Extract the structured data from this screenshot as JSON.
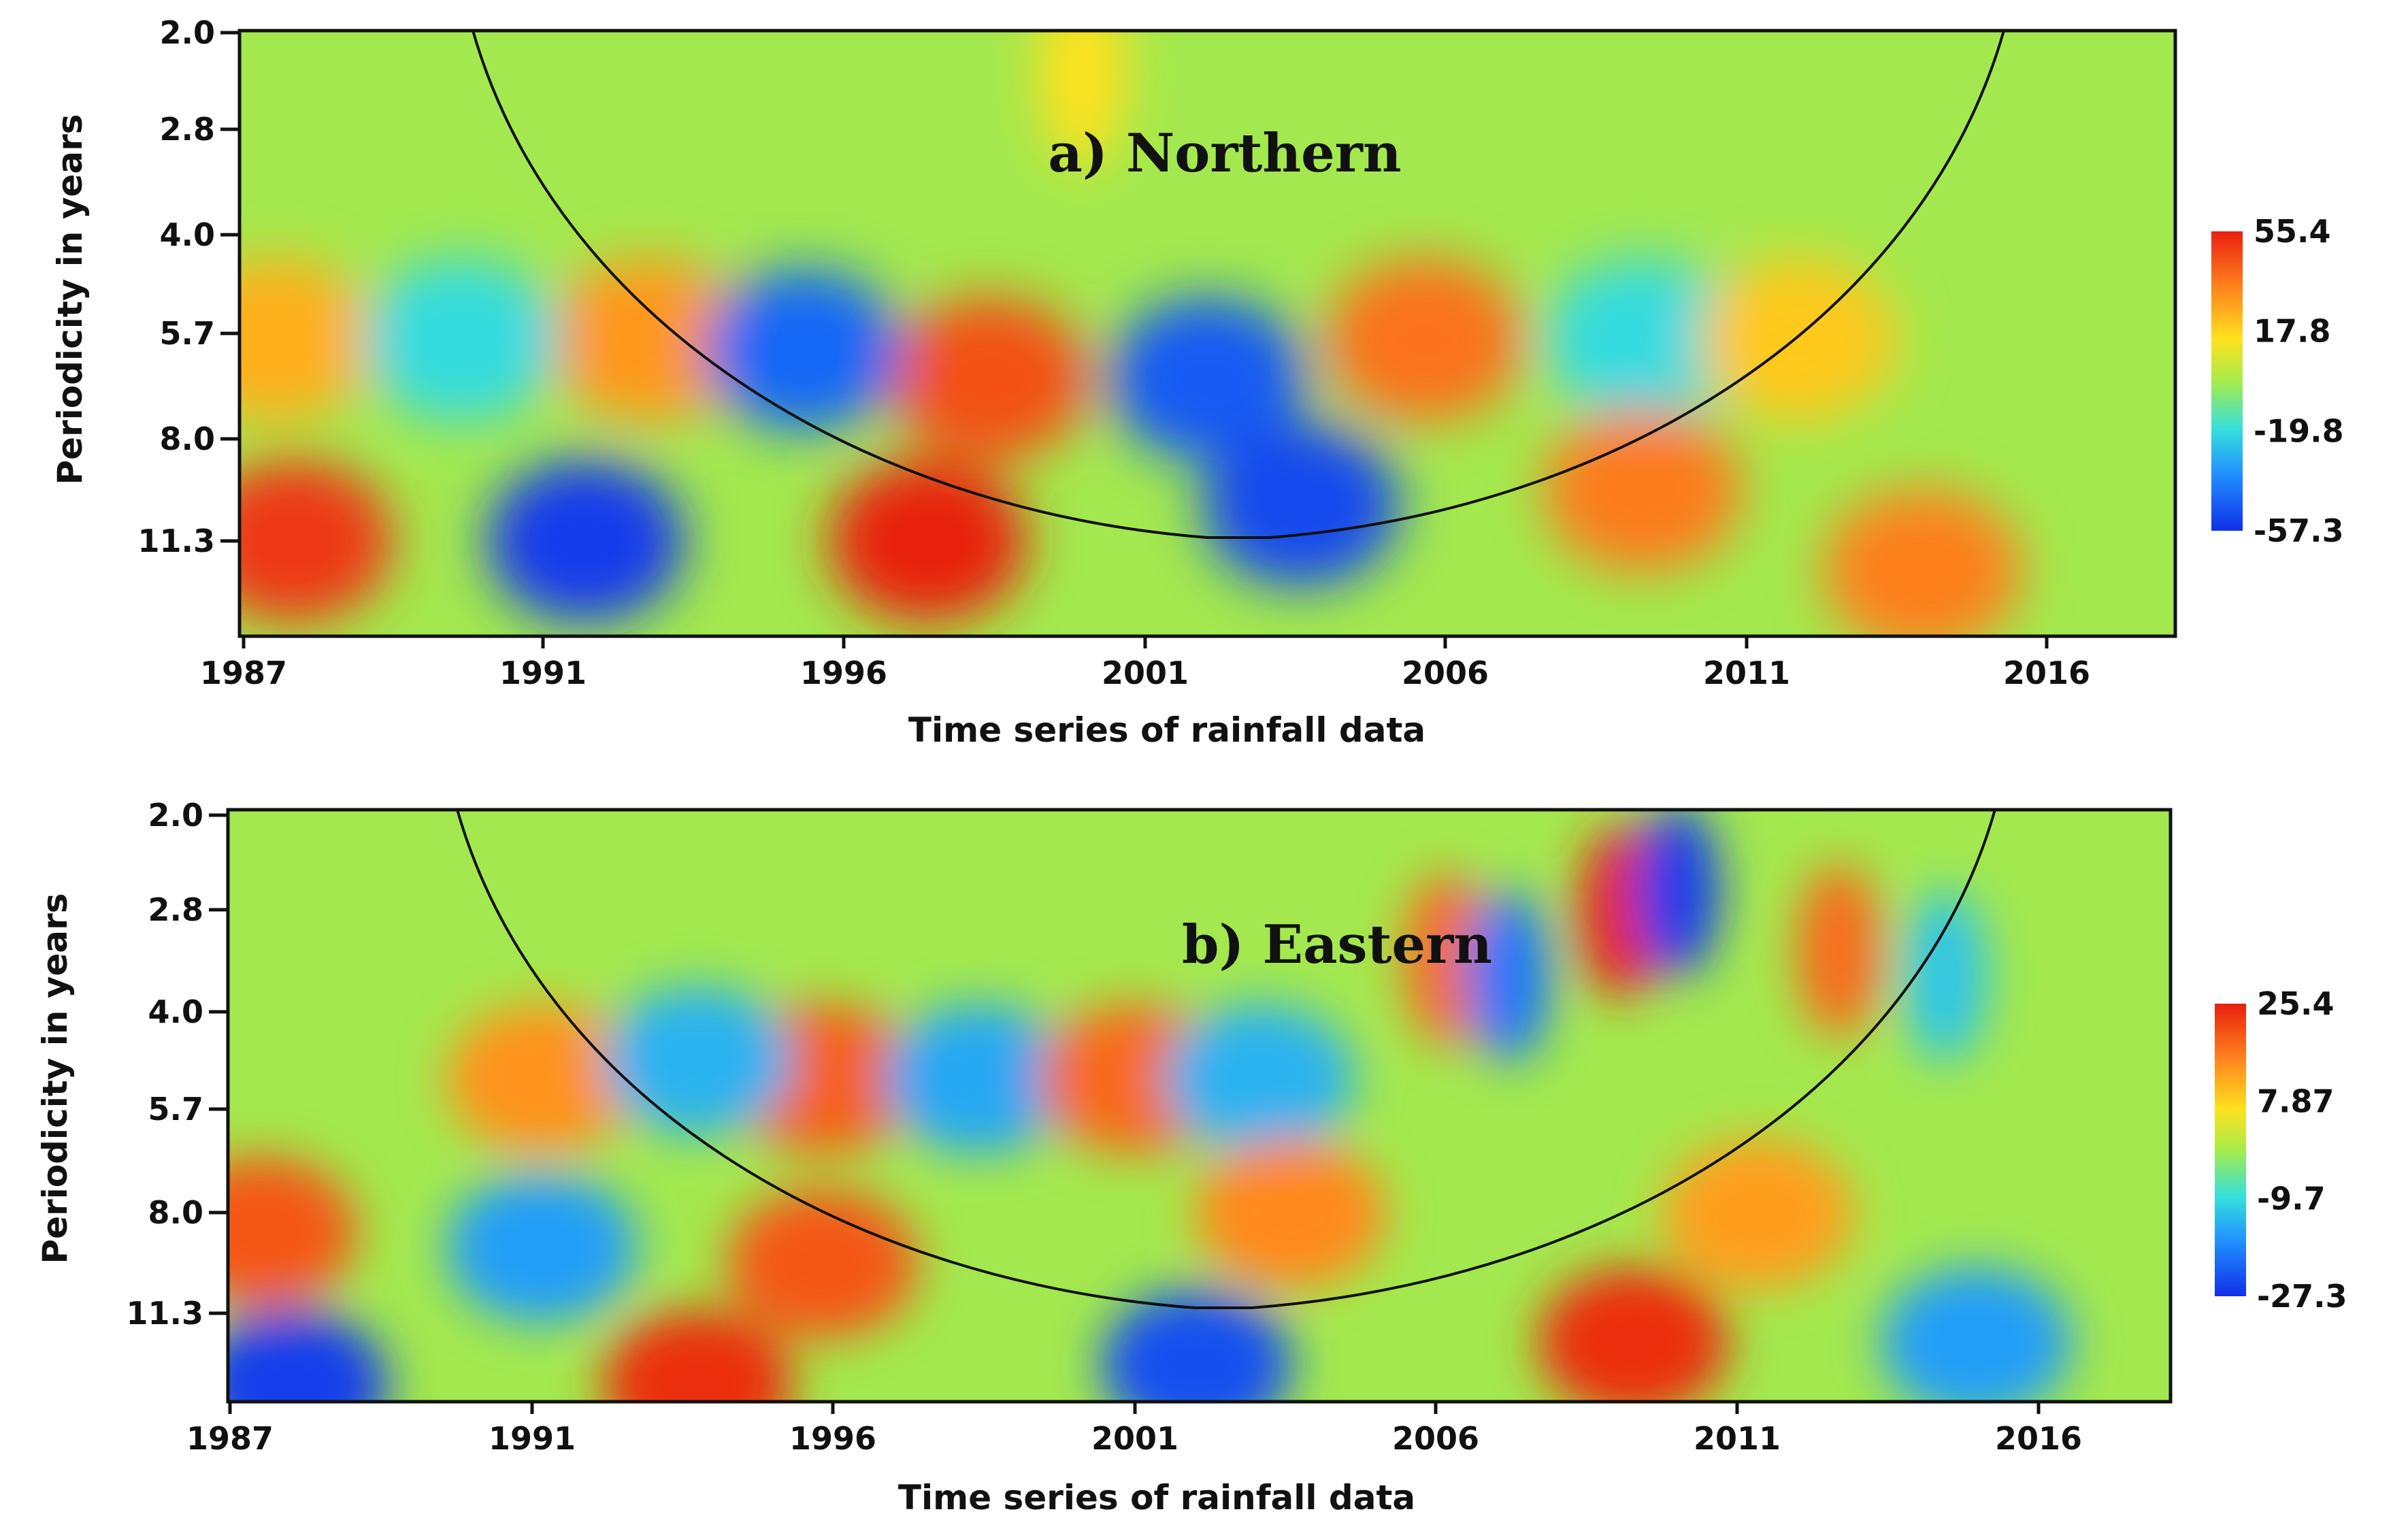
{
  "chart_data": [
    {
      "type": "heatmap",
      "title": "a) Northern",
      "xlabel": "Time series of rainfall data",
      "ylabel": "Periodicity in years",
      "x_ticks": [
        "1987",
        "1991",
        "1996",
        "2001",
        "2006",
        "2011",
        "2016"
      ],
      "y_ticks": [
        "2.0",
        "2.8",
        "4.0",
        "5.7",
        "8.0",
        "11.3"
      ],
      "xlim": [
        1987,
        2018.5
      ],
      "colorbar": {
        "ticks": [
          "55.4",
          "17.8",
          "-19.8",
          "-57.3"
        ],
        "min": -57.3,
        "max": 55.4
      },
      "cone_of_influence": true,
      "features": [
        {
          "year": 1987.8,
          "period": 11.3,
          "value": 50
        },
        {
          "year": 1992.5,
          "period": 11.3,
          "value": -55
        },
        {
          "year": 1998.0,
          "period": 11.3,
          "value": 55
        },
        {
          "year": 1999.0,
          "period": 6.5,
          "value": 45
        },
        {
          "year": 1987.5,
          "period": 5.7,
          "value": 25
        },
        {
          "year": 1993.5,
          "period": 5.7,
          "value": 30
        },
        {
          "year": 1990.5,
          "period": 5.7,
          "value": -20
        },
        {
          "year": 1996.0,
          "period": 5.9,
          "value": -45
        },
        {
          "year": 2002.5,
          "period": 6.5,
          "value": -48
        },
        {
          "year": 2004.0,
          "period": 10.0,
          "value": -52
        },
        {
          "year": 2006.0,
          "period": 5.7,
          "value": 38
        },
        {
          "year": 2009.5,
          "period": 5.7,
          "value": -20
        },
        {
          "year": 2009.5,
          "period": 9.5,
          "value": 36
        },
        {
          "year": 2012.0,
          "period": 5.7,
          "value": 20
        },
        {
          "year": 2014.0,
          "period": 12.5,
          "value": 35
        },
        {
          "year": 2000.5,
          "period": 2.3,
          "value": 15
        }
      ]
    },
    {
      "type": "heatmap",
      "title": "b) Eastern",
      "xlabel": "Time series of rainfall data",
      "ylabel": "Periodicity in years",
      "x_ticks": [
        "1987",
        "1991",
        "1996",
        "2001",
        "2006",
        "2011",
        "2016"
      ],
      "y_ticks": [
        "2.0",
        "2.8",
        "4.0",
        "5.7",
        "8.0",
        "11.3"
      ],
      "xlim": [
        1987,
        2018.5
      ],
      "colorbar": {
        "ticks": [
          "25.4",
          "7.87",
          "-9.7",
          "-27.3"
        ],
        "min": -27.3,
        "max": 25.4
      },
      "cone_of_influence": true,
      "features": [
        {
          "year": 1987.5,
          "period": 8.5,
          "value": 20
        },
        {
          "year": 1988.0,
          "period": 14.5,
          "value": -26
        },
        {
          "year": 1992.0,
          "period": 9.0,
          "value": -16
        },
        {
          "year": 1994.5,
          "period": 14.5,
          "value": 24
        },
        {
          "year": 1996.5,
          "period": 9.5,
          "value": 20
        },
        {
          "year": 1996.5,
          "period": 5.0,
          "value": 19
        },
        {
          "year": 1992.0,
          "period": 5.0,
          "value": 14
        },
        {
          "year": 1994.5,
          "period": 4.7,
          "value": -14
        },
        {
          "year": 1999.0,
          "period": 5.0,
          "value": -15
        },
        {
          "year": 2001.5,
          "period": 5.0,
          "value": 18
        },
        {
          "year": 2003.5,
          "period": 5.0,
          "value": -14
        },
        {
          "year": 2002.5,
          "period": 13.5,
          "value": -24
        },
        {
          "year": 2004.0,
          "period": 8.0,
          "value": 15
        },
        {
          "year": 2006.5,
          "period": 3.3,
          "value": 18
        },
        {
          "year": 2007.5,
          "period": 3.5,
          "value": -20
        },
        {
          "year": 2009.3,
          "period": 2.8,
          "value": 25
        },
        {
          "year": 2010.2,
          "period": 2.6,
          "value": -26
        },
        {
          "year": 2012.8,
          "period": 3.2,
          "value": 18
        },
        {
          "year": 2009.5,
          "period": 12.5,
          "value": 24
        },
        {
          "year": 2011.5,
          "period": 8.0,
          "value": 13
        },
        {
          "year": 2015.0,
          "period": 12.5,
          "value": -16
        },
        {
          "year": 2014.5,
          "period": 3.5,
          "value": -12
        }
      ]
    }
  ]
}
